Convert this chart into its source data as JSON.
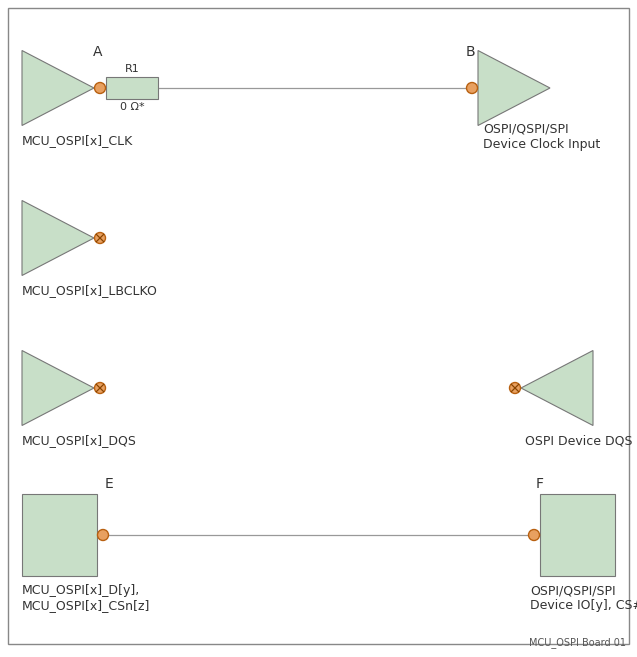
{
  "bg_color": "#ffffff",
  "border_color": "#888888",
  "tri_fill": "#c8dfc8",
  "tri_edge": "#777777",
  "rect_fill": "#c8dfc8",
  "rect_edge": "#777777",
  "dot_fill": "#e8a060",
  "dot_edge": "#b86010",
  "line_color": "#999999",
  "text_color": "#333333",
  "label_A": "A",
  "label_B": "B",
  "label_E": "E",
  "label_F": "F",
  "label_R1": "R1",
  "label_ohm": "0 Ω*",
  "label_clk": "MCU_OSPI[x]_CLK",
  "label_clk_dev": "OSPI/QSPI/SPI\nDevice Clock Input",
  "label_lbclko": "MCU_OSPI[x]_LBCLKO",
  "label_dqs_mcu": "MCU_OSPI[x]_DQS",
  "label_dqs_dev": "OSPI Device DQS",
  "label_dio_mcu": "MCU_OSPI[x]_D[y],\nMCU_OSPI[x]_CSn[z]",
  "label_dio_dev": "OSPI/QSPI/SPI\nDevice IO[y], CS#",
  "footnote": "MCU_OSPI Board 01"
}
